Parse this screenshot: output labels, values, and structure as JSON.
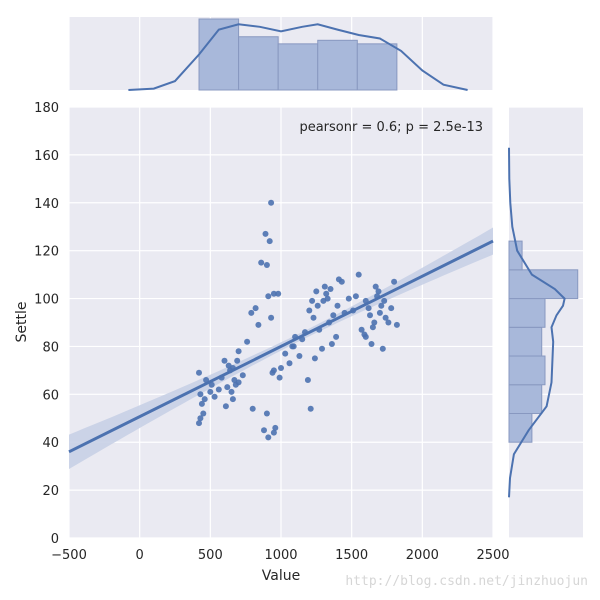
{
  "chart_data": {
    "type": "scatter",
    "title": "",
    "xlabel": "Value",
    "ylabel": "Settle",
    "xlim": [
      -500,
      2500
    ],
    "ylim": [
      0,
      180
    ],
    "x_ticks": [
      -500,
      0,
      500,
      1000,
      1500,
      2000,
      2500
    ],
    "x_tick_labels": [
      "−500",
      "0",
      "500",
      "1000",
      "1500",
      "2000",
      "2500"
    ],
    "y_ticks": [
      0,
      20,
      40,
      60,
      80,
      100,
      120,
      140,
      160,
      180
    ],
    "y_tick_labels": [
      "0",
      "20",
      "40",
      "60",
      "80",
      "100",
      "120",
      "140",
      "160",
      "180"
    ],
    "grid": true,
    "annotation": "pearsonr = 0.6; p = 2.5e-13",
    "regression_line": {
      "x": [
        -500,
        2500
      ],
      "y": [
        36,
        124
      ]
    },
    "points": [
      [
        420,
        69
      ],
      [
        430,
        60
      ],
      [
        440,
        56
      ],
      [
        450,
        52
      ],
      [
        420,
        48
      ],
      [
        430,
        50
      ],
      [
        460,
        58
      ],
      [
        470,
        66
      ],
      [
        500,
        61
      ],
      [
        510,
        64
      ],
      [
        530,
        59
      ],
      [
        560,
        62
      ],
      [
        580,
        67
      ],
      [
        600,
        74
      ],
      [
        610,
        55
      ],
      [
        620,
        63
      ],
      [
        630,
        72
      ],
      [
        640,
        70
      ],
      [
        650,
        61
      ],
      [
        660,
        58
      ],
      [
        660,
        71
      ],
      [
        670,
        66
      ],
      [
        680,
        64
      ],
      [
        690,
        74
      ],
      [
        700,
        65
      ],
      [
        700,
        78
      ],
      [
        730,
        68
      ],
      [
        760,
        82
      ],
      [
        790,
        94
      ],
      [
        800,
        54
      ],
      [
        820,
        96
      ],
      [
        840,
        89
      ],
      [
        860,
        115
      ],
      [
        880,
        45
      ],
      [
        890,
        127
      ],
      [
        900,
        114
      ],
      [
        900,
        52
      ],
      [
        910,
        101
      ],
      [
        920,
        124
      ],
      [
        930,
        92
      ],
      [
        930,
        140
      ],
      [
        940,
        69
      ],
      [
        950,
        102
      ],
      [
        950,
        70
      ],
      [
        960,
        46
      ],
      [
        980,
        102
      ],
      [
        990,
        67
      ],
      [
        1000,
        71
      ],
      [
        910,
        42
      ],
      [
        950,
        44
      ],
      [
        1030,
        77
      ],
      [
        1060,
        73
      ],
      [
        1080,
        80
      ],
      [
        1090,
        80
      ],
      [
        1100,
        84
      ],
      [
        1130,
        76
      ],
      [
        1150,
        83
      ],
      [
        1170,
        86
      ],
      [
        1190,
        66
      ],
      [
        1200,
        95
      ],
      [
        1210,
        54
      ],
      [
        1220,
        99
      ],
      [
        1230,
        92
      ],
      [
        1240,
        75
      ],
      [
        1250,
        103
      ],
      [
        1260,
        97
      ],
      [
        1270,
        87
      ],
      [
        1290,
        79
      ],
      [
        1300,
        99
      ],
      [
        1310,
        105
      ],
      [
        1320,
        102
      ],
      [
        1330,
        100
      ],
      [
        1340,
        90
      ],
      [
        1350,
        104
      ],
      [
        1360,
        81
      ],
      [
        1370,
        93
      ],
      [
        1390,
        84
      ],
      [
        1400,
        97
      ],
      [
        1410,
        108
      ],
      [
        1430,
        107
      ],
      [
        1450,
        94
      ],
      [
        1480,
        100
      ],
      [
        1510,
        95
      ],
      [
        1530,
        101
      ],
      [
        1550,
        110
      ],
      [
        1570,
        87
      ],
      [
        1590,
        85
      ],
      [
        1600,
        99
      ],
      [
        1620,
        96
      ],
      [
        1630,
        93
      ],
      [
        1640,
        81
      ],
      [
        1650,
        88
      ],
      [
        1660,
        90
      ],
      [
        1670,
        105
      ],
      [
        1680,
        101
      ],
      [
        1690,
        103
      ],
      [
        1700,
        94
      ],
      [
        1710,
        97
      ],
      [
        1720,
        79
      ],
      [
        1730,
        99
      ],
      [
        1740,
        92
      ],
      [
        1760,
        90
      ],
      [
        1780,
        96
      ],
      [
        1800,
        107
      ],
      [
        1820,
        89
      ],
      [
        1600,
        84
      ]
    ],
    "marginal_x": {
      "bins": [
        [
          420,
          700
        ],
        [
          700,
          980
        ],
        [
          980,
          1260
        ],
        [
          1260,
          1540
        ],
        [
          1540,
          1820
        ]
      ],
      "counts": [
        20,
        15,
        13,
        14,
        13
      ],
      "kde_x": [
        -80,
        100,
        250,
        420,
        560,
        700,
        850,
        1000,
        1150,
        1260,
        1400,
        1550,
        1700,
        1850,
        2000,
        2150,
        2320
      ],
      "kde_y": [
        0.0,
        0.4,
        2.5,
        10.0,
        17.0,
        18.5,
        17.8,
        16.5,
        17.8,
        18.5,
        17.0,
        15.5,
        14.5,
        11.0,
        5.5,
        1.5,
        0.0
      ]
    },
    "marginal_y": {
      "bins": [
        [
          40,
          52
        ],
        [
          52,
          64
        ],
        [
          64,
          76
        ],
        [
          76,
          88
        ],
        [
          88,
          100
        ],
        [
          100,
          112
        ],
        [
          112,
          124
        ]
      ],
      "counts": [
        7,
        10,
        11,
        10,
        11,
        21,
        4
      ],
      "kde_y": [
        17,
        25,
        35,
        45,
        55,
        65,
        75,
        82,
        88,
        93,
        97,
        100,
        104,
        110,
        120,
        130,
        140,
        150,
        163
      ],
      "kde_x": [
        0.0,
        0.3,
        1.5,
        6.0,
        11.5,
        13.0,
        13.3,
        13.5,
        13.0,
        14.5,
        16.5,
        17.0,
        14.0,
        7.0,
        2.5,
        1.0,
        0.4,
        0.1,
        0.0
      ]
    },
    "colors": {
      "background": "#eaeaf2",
      "grid": "#ffffff",
      "points": "#4c72b0",
      "line": "#4c72b0",
      "band": "#c8d0e6",
      "hist_fill": "#a8b8da",
      "hist_stroke": "#8898c0"
    }
  },
  "watermark": "http://blog.csdn.net/jinzhuojun"
}
